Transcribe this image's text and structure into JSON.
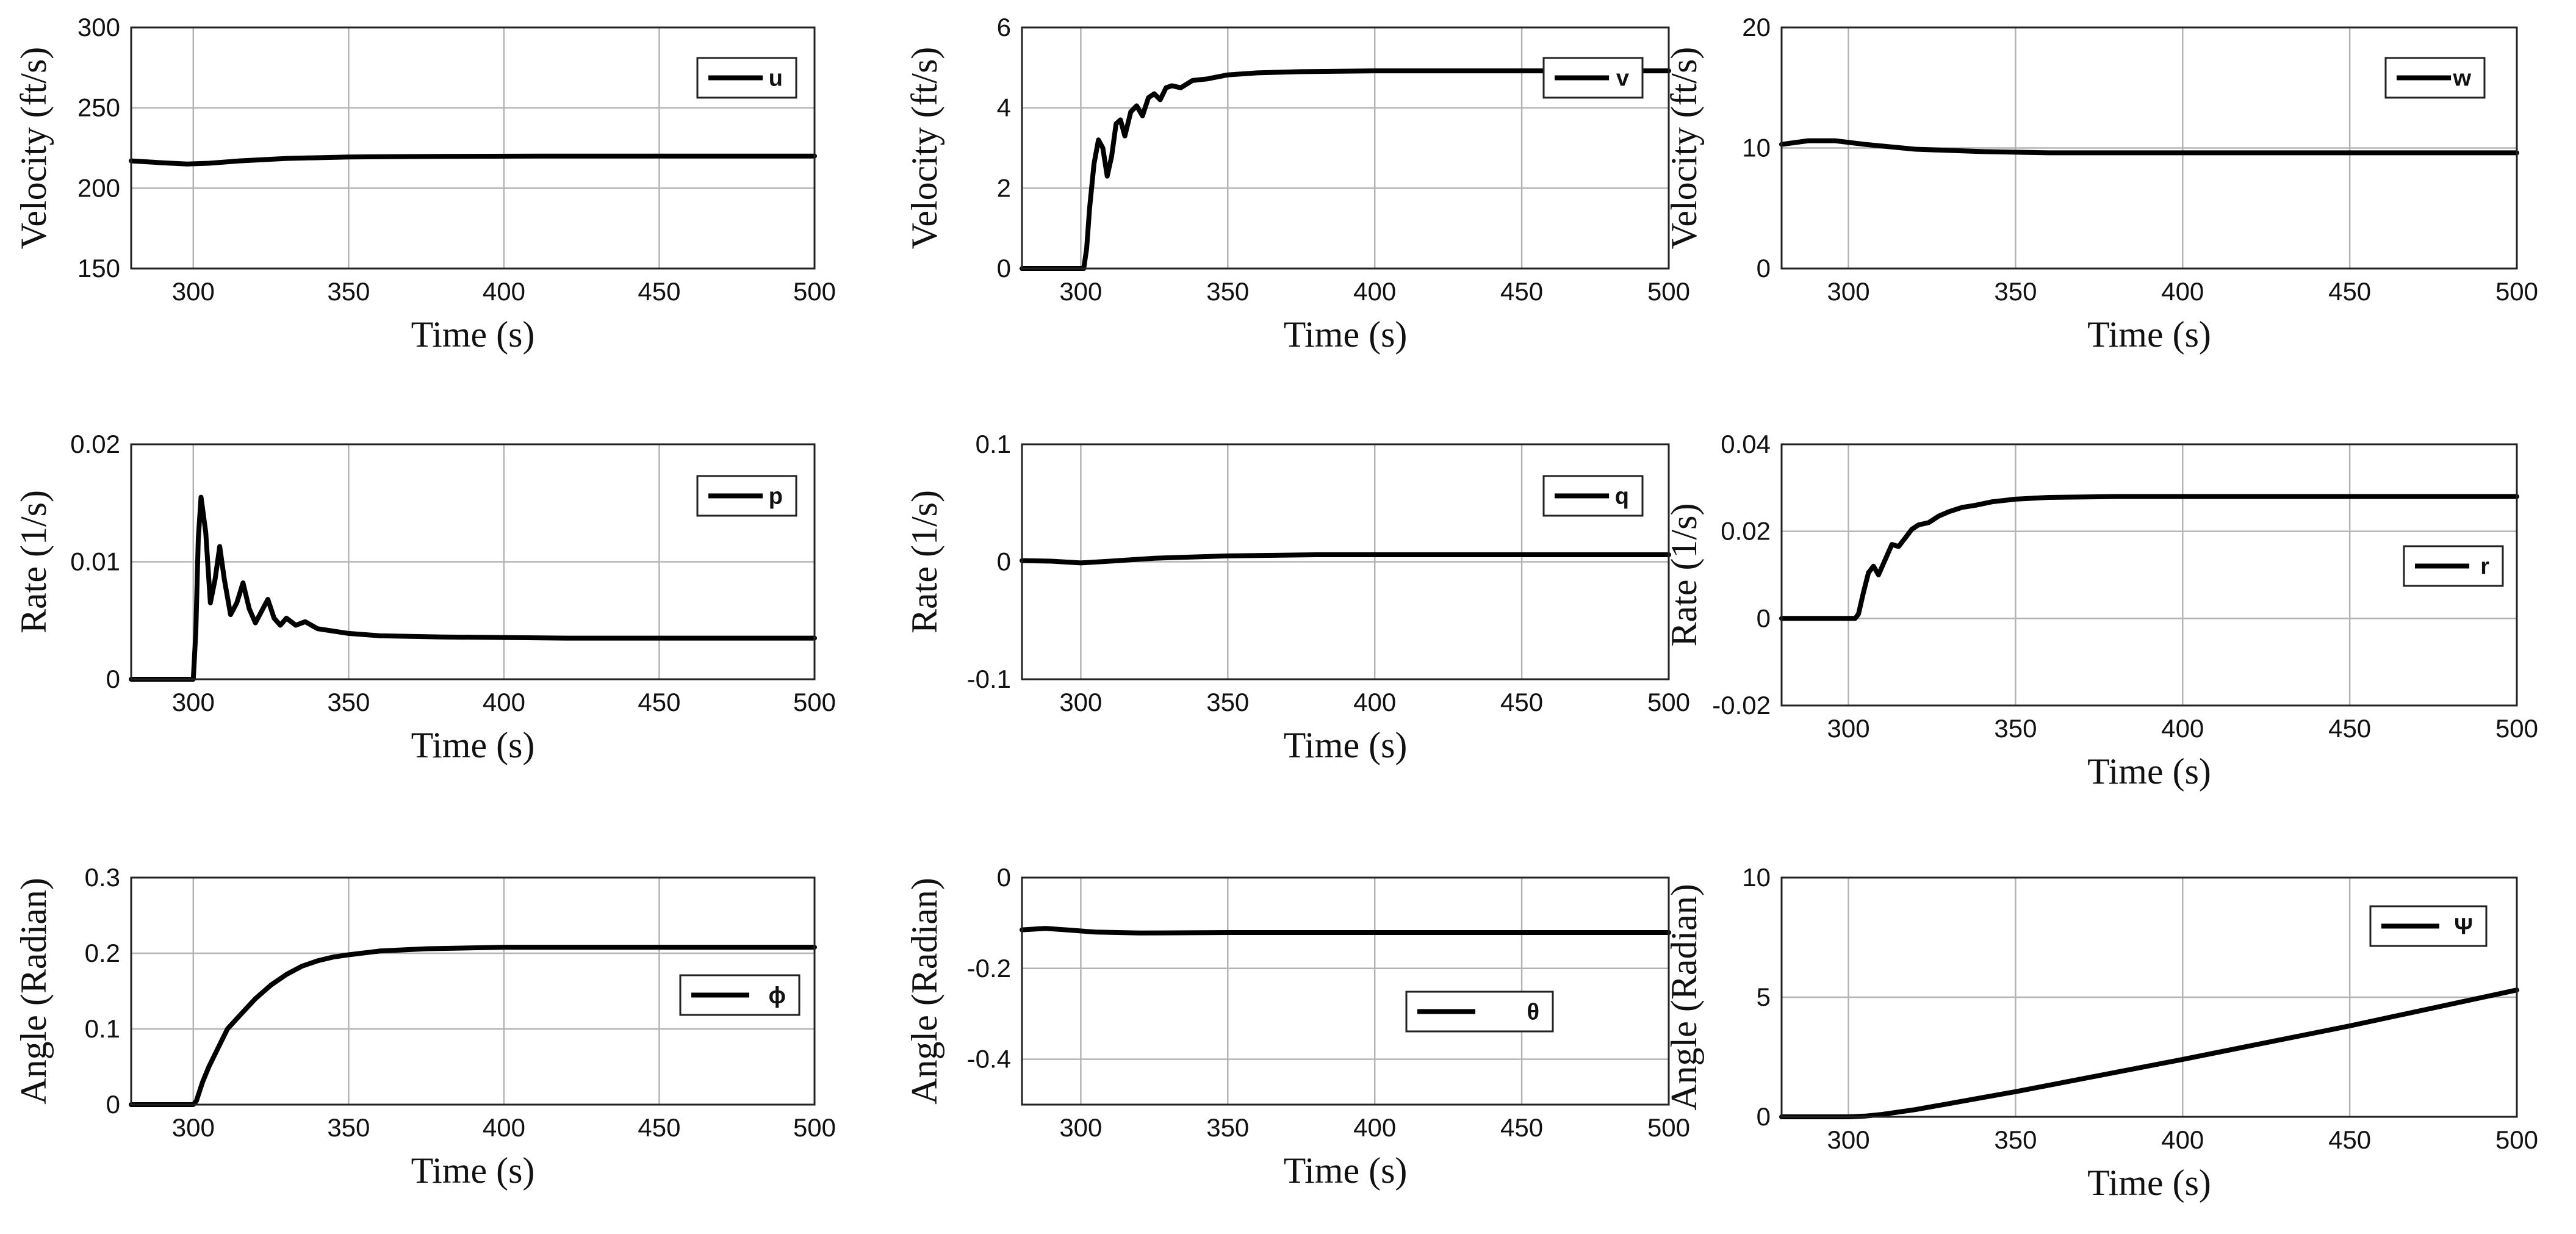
{
  "chart_data": [
    {
      "type": "line",
      "id": "u",
      "xlabel": "Time (s)",
      "ylabel": "Velocity (ft/s)",
      "xlim": [
        280,
        500
      ],
      "ylim": [
        150,
        300
      ],
      "xticks": [
        "300",
        "350",
        "400",
        "450",
        "500"
      ],
      "yticks": [
        "150",
        "200",
        "250",
        "300"
      ],
      "grid": true,
      "legend_position": "top-right",
      "series": [
        {
          "name": "u",
          "x": [
            280,
            290,
            298,
            305,
            315,
            330,
            350,
            380,
            420,
            500
          ],
          "y": [
            217,
            215.8,
            215,
            215.5,
            217,
            218.5,
            219.4,
            219.8,
            220,
            220
          ]
        }
      ]
    },
    {
      "type": "line",
      "id": "v",
      "xlabel": "Time (s)",
      "ylabel": "Velocity (ft/s)",
      "xlim": [
        280,
        500
      ],
      "ylim": [
        0,
        6
      ],
      "xticks": [
        "300",
        "350",
        "400",
        "450",
        "500"
      ],
      "yticks": [
        "0",
        "2",
        "4",
        "6"
      ],
      "grid": true,
      "legend_position": "top-right",
      "series": [
        {
          "name": "v",
          "x": [
            280,
            300,
            301,
            302,
            303,
            304.5,
            306,
            307.5,
            309,
            310.5,
            312,
            313.5,
            315,
            317,
            319,
            321,
            323,
            325,
            327,
            329,
            331,
            334,
            338,
            343,
            350,
            360,
            375,
            400,
            450,
            500
          ],
          "y": [
            0,
            0,
            0,
            0.5,
            1.5,
            2.6,
            3.2,
            3.0,
            2.3,
            2.8,
            3.6,
            3.7,
            3.3,
            3.9,
            4.05,
            3.8,
            4.25,
            4.35,
            4.2,
            4.5,
            4.55,
            4.5,
            4.68,
            4.72,
            4.82,
            4.87,
            4.9,
            4.92,
            4.92,
            4.92
          ]
        }
      ]
    },
    {
      "type": "line",
      "id": "w",
      "xlabel": "Time (s)",
      "ylabel": "Velocity (ft/s)",
      "xlim": [
        280,
        500
      ],
      "ylim": [
        0,
        20
      ],
      "xticks": [
        "300",
        "350",
        "400",
        "450",
        "500"
      ],
      "yticks": [
        "0",
        "10",
        "20"
      ],
      "grid": true,
      "legend_position": "top-right",
      "series": [
        {
          "name": "w",
          "x": [
            280,
            288,
            296,
            305,
            320,
            340,
            360,
            400,
            500
          ],
          "y": [
            10.3,
            10.6,
            10.6,
            10.3,
            9.9,
            9.7,
            9.6,
            9.6,
            9.6
          ]
        }
      ]
    },
    {
      "type": "line",
      "id": "p",
      "xlabel": "Time (s)",
      "ylabel": "Rate (1/s)",
      "xlim": [
        280,
        500
      ],
      "ylim": [
        0,
        0.02
      ],
      "xticks": [
        "300",
        "350",
        "400",
        "450",
        "500"
      ],
      "yticks": [
        "0",
        "0.01",
        "0.02"
      ],
      "grid": true,
      "legend_position": "top-right",
      "series": [
        {
          "name": "p",
          "x": [
            280,
            300,
            300.8,
            301.6,
            302.5,
            304,
            305.5,
            307,
            308.5,
            310,
            312,
            314,
            316,
            318,
            320,
            322,
            324,
            326,
            328,
            330,
            333,
            336,
            340,
            345,
            350,
            360,
            380,
            420,
            500
          ],
          "y": [
            0,
            0,
            0.004,
            0.012,
            0.0155,
            0.0125,
            0.0065,
            0.0085,
            0.0113,
            0.0085,
            0.0055,
            0.0065,
            0.0082,
            0.006,
            0.0048,
            0.0058,
            0.0068,
            0.0052,
            0.0046,
            0.0052,
            0.0046,
            0.0049,
            0.0043,
            0.0041,
            0.0039,
            0.0037,
            0.0036,
            0.0035,
            0.0035
          ]
        }
      ]
    },
    {
      "type": "line",
      "id": "q",
      "xlabel": "Time (s)",
      "ylabel": "Rate (1/s)",
      "xlim": [
        280,
        500
      ],
      "ylim": [
        -0.1,
        0.1
      ],
      "xticks": [
        "300",
        "350",
        "400",
        "450",
        "500"
      ],
      "yticks": [
        "-0.1",
        "0",
        "0.1"
      ],
      "grid": true,
      "legend_position": "top-right",
      "series": [
        {
          "name": "q",
          "x": [
            280,
            290,
            300,
            310,
            325,
            350,
            380,
            420,
            500
          ],
          "y": [
            0.001,
            0.0005,
            -0.001,
            0.0005,
            0.003,
            0.005,
            0.006,
            0.006,
            0.006
          ]
        }
      ]
    },
    {
      "type": "line",
      "id": "r",
      "xlabel": "Time (s)",
      "ylabel": "Rate (1/s)",
      "xlim": [
        280,
        500
      ],
      "ylim": [
        -0.02,
        0.04
      ],
      "xticks": [
        "300",
        "350",
        "400",
        "450",
        "500"
      ],
      "yticks": [
        "-0.02",
        "0",
        "0.02",
        "0.04"
      ],
      "grid": true,
      "legend_position": "center-right",
      "series": [
        {
          "name": "r",
          "x": [
            280,
            302,
            303,
            304.5,
            306,
            307.5,
            309,
            311,
            313,
            315,
            317,
            319,
            321,
            324,
            327,
            330,
            334,
            338,
            343,
            350,
            360,
            380,
            420,
            500
          ],
          "y": [
            0,
            0,
            0.001,
            0.006,
            0.0105,
            0.012,
            0.01,
            0.0135,
            0.017,
            0.0165,
            0.0185,
            0.0205,
            0.0215,
            0.022,
            0.0235,
            0.0245,
            0.0255,
            0.026,
            0.0268,
            0.0274,
            0.0278,
            0.028,
            0.028,
            0.028
          ]
        }
      ]
    },
    {
      "type": "line",
      "id": "phi",
      "xlabel": "Time (s)",
      "ylabel": "Angle (Radian)",
      "xlim": [
        280,
        500
      ],
      "ylim": [
        0,
        0.3
      ],
      "xticks": [
        "300",
        "350",
        "400",
        "450",
        "500"
      ],
      "yticks": [
        "0",
        "0.1",
        "0.2",
        "0.3"
      ],
      "grid": true,
      "legend_position": "center-right",
      "series": [
        {
          "name": "ϕ",
          "x": [
            280,
            300,
            301,
            303,
            305,
            308,
            311,
            315,
            320,
            325,
            330,
            335,
            340,
            345,
            350,
            360,
            375,
            400,
            450,
            500
          ],
          "y": [
            0,
            0,
            0.005,
            0.03,
            0.05,
            0.075,
            0.1,
            0.118,
            0.14,
            0.158,
            0.172,
            0.183,
            0.19,
            0.195,
            0.198,
            0.203,
            0.206,
            0.208,
            0.208,
            0.208
          ]
        }
      ]
    },
    {
      "type": "line",
      "id": "theta",
      "xlabel": "Time (s)",
      "ylabel": "Angle (Radian)",
      "xlim": [
        280,
        500
      ],
      "ylim": [
        -0.5,
        0
      ],
      "xticks": [
        "300",
        "350",
        "400",
        "450",
        "500"
      ],
      "yticks": [
        "-0.4",
        "-0.2",
        "0"
      ],
      "grid": true,
      "legend_position": "bottom-center",
      "series": [
        {
          "name": "θ",
          "x": [
            280,
            288,
            295,
            305,
            320,
            350,
            400,
            500
          ],
          "y": [
            -0.115,
            -0.112,
            -0.115,
            -0.12,
            -0.122,
            -0.121,
            -0.121,
            -0.121
          ]
        }
      ]
    },
    {
      "type": "line",
      "id": "psi",
      "xlabel": "Time (s)",
      "ylabel": "Angle (Radian)",
      "xlim": [
        280,
        500
      ],
      "ylim": [
        0,
        10
      ],
      "xticks": [
        "300",
        "350",
        "400",
        "450",
        "500"
      ],
      "yticks": [
        "0",
        "5",
        "10"
      ],
      "grid": true,
      "legend_position": "top-right",
      "series": [
        {
          "name": "Ψ",
          "x": [
            280,
            300,
            305,
            310,
            320,
            330,
            340,
            350,
            400,
            450,
            500
          ],
          "y": [
            0,
            0,
            0.03,
            0.1,
            0.3,
            0.55,
            0.8,
            1.05,
            2.4,
            3.8,
            5.3
          ]
        }
      ]
    }
  ]
}
